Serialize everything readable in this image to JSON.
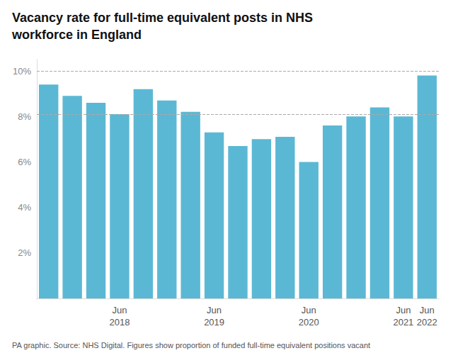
{
  "chart_data": {
    "type": "bar",
    "title": "Vacancy rate for full-time equivalent posts in NHS\nworkforce in England",
    "caption": "PA graphic. Source: NHS Digital. Figures show proportion of funded full-time equivalent positions vacant",
    "categories": [
      null,
      null,
      null,
      "Jun\n2018",
      null,
      null,
      null,
      "Jun\n2019",
      null,
      null,
      null,
      "Jun\n2020",
      null,
      null,
      null,
      "Jun\n2021",
      "Jun\n2022"
    ],
    "values": [
      9.4,
      8.9,
      8.6,
      8.1,
      9.2,
      8.7,
      8.2,
      7.3,
      6.7,
      7.0,
      7.1,
      6.0,
      7.6,
      8.0,
      8.4,
      8.0,
      9.8
    ],
    "color": "#5bb8d4",
    "ylim": [
      0,
      10.5
    ],
    "yticks": [
      {
        "value": 2,
        "label": "2%"
      },
      {
        "value": 4,
        "label": "4%"
      },
      {
        "value": 6,
        "label": "6%"
      },
      {
        "value": 8,
        "label": "8%"
      },
      {
        "value": 10,
        "label": "10%"
      }
    ],
    "hlines": [
      10.0,
      8.1
    ],
    "grid": false
  }
}
